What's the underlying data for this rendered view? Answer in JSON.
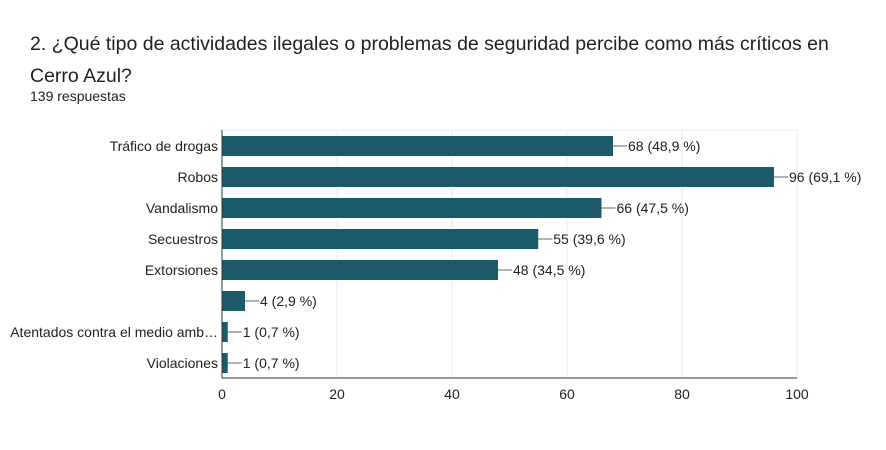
{
  "question": {
    "title": "2.  ¿Qué tipo de actividades ilegales o problemas de seguridad percibe como más críticos en Cerro Azul?",
    "response_count": "139 respuestas"
  },
  "colors": {
    "bar": "#1b5a6b",
    "gridline": "#ebebeb",
    "axis": "#333333",
    "text": "#212121"
  },
  "chart_data": {
    "type": "bar",
    "orientation": "horizontal",
    "categories": [
      "Tráfico de drogas",
      "Robos",
      "Vandalismo",
      "Secuestros",
      "Extorsiones",
      "",
      "Atentados contra el medio amb…",
      "Violaciones"
    ],
    "values": [
      68,
      96,
      66,
      55,
      48,
      4,
      1,
      1
    ],
    "data_labels": [
      "68 (48,9 %)",
      "96 (69,1 %)",
      "66 (47,5 %)",
      "55 (39,6 %)",
      "48 (34,5 %)",
      "4 (2,9 %)",
      "1 (0,7 %)",
      "1 (0,7 %)"
    ],
    "xlim": [
      0,
      100
    ],
    "x_ticks": [
      "0",
      "20",
      "40",
      "60",
      "80",
      "100"
    ],
    "grid": true
  }
}
